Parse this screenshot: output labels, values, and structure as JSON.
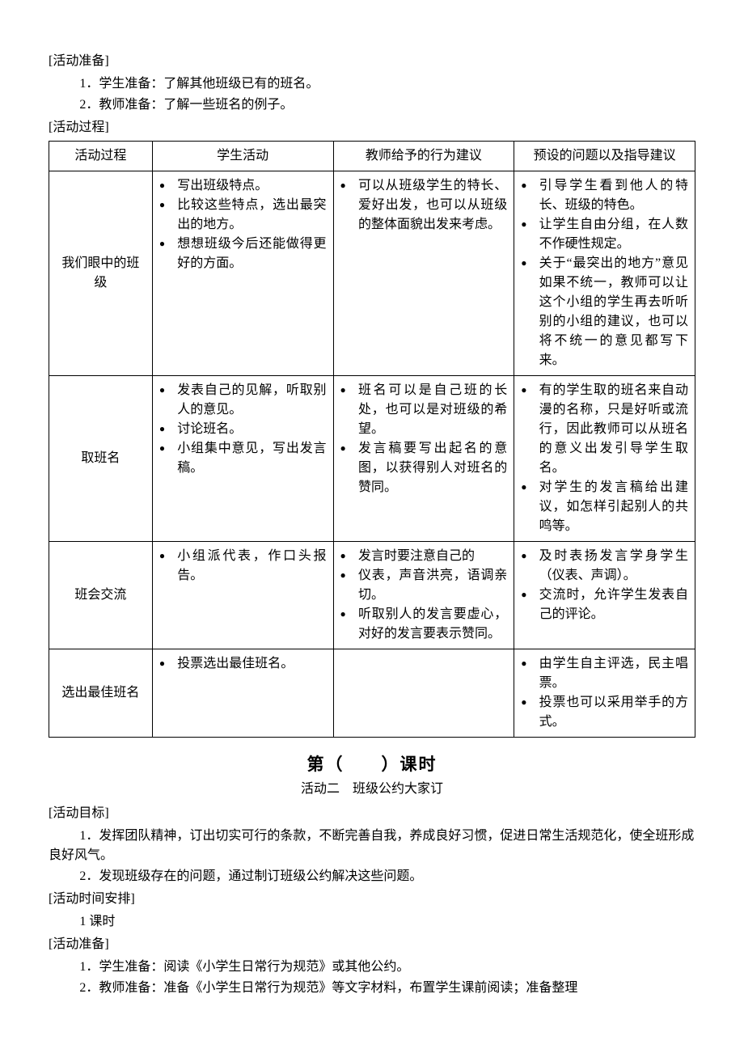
{
  "prep": {
    "label": "[活动准备]",
    "items": [
      "1．学生准备：了解其他班级已有的班名。",
      "2．教师准备：了解一些班名的例子。"
    ]
  },
  "process_label": "[活动过程]",
  "table": {
    "headers": [
      "活动过程",
      "学生活动",
      "教师给予的行为建议",
      "预设的问题以及指导建议"
    ],
    "rows": [
      {
        "stage": "我们眼中的班级",
        "student": [
          "写出班级特点。",
          "比较这些特点，选出最突出的地方。",
          "想想班级今后还能做得更好的方面。"
        ],
        "teacher": [
          "可以从班级学生的特长、爱好出发，也可以从班级的整体面貌出发来考虑。"
        ],
        "preset": [
          "引导学生看到他人的特长、班级的特色。",
          "让学生自由分组，在人数不作硬性规定。",
          "关于“最突出的地方”意见如果不统一，教师可以让这个小组的学生再去听听别的小组的建议，也可以将不统一的意见都写下来。"
        ]
      },
      {
        "stage": "取班名",
        "student": [
          "发表自己的见解，听取别人的意见。",
          "讨论班名。",
          "小组集中意见，写出发言稿。"
        ],
        "teacher": [
          "班名可以是自己班的长处，也可以是对班级的希望。",
          "发言稿要写出起名的意图，以获得别人对班名的赞同。"
        ],
        "preset": [
          "有的学生取的班名来自动漫的名称，只是好听或流行，因此教师可以从班名的意义出发引导学生取名。",
          "对学生的发言稿给出建议，如怎样引起别人的共鸣等。"
        ]
      },
      {
        "stage": "班会交流",
        "student": [
          "小组派代表，作口头报告。"
        ],
        "teacher": [
          "发言时要注意自己的",
          "仪表，声音洪亮，语调亲切。",
          "听取别人的发言要虚心，对好的发言要表示赞同。"
        ],
        "preset": [
          "及时表扬发言学身学生（仪表、声调）。",
          "交流时，允许学生发表自己的评论。"
        ]
      },
      {
        "stage": "选出最佳班名",
        "student": [
          "投票选出最佳班名。"
        ],
        "teacher": [],
        "preset": [
          "由学生自主评选，民主唱票。",
          "投票也可以采用举手的方式。"
        ]
      }
    ]
  },
  "lesson2": {
    "title": "第（　　）课时",
    "subtitle": "活动二　班级公约大家订",
    "goal_label": "[活动目标]",
    "goals": [
      "1．发挥团队精神，订出切实可行的条款，不断完善自我，养成良好习惯，促进日常生活规范化，使全班形成良好风气。",
      "2．发现班级存在的问题，通过制订班级公约解决这些问题。"
    ],
    "time_label": "[活动时间安排]",
    "time_value": "1 课时",
    "prep_label": "[活动准备]",
    "preps": [
      "1．学生准备：阅读《小学生日常行为规范》或其他公约。",
      "2．教师准备：准备《小学生日常行为规范》等文字材料，布置学生课前阅读；准备整理"
    ]
  }
}
